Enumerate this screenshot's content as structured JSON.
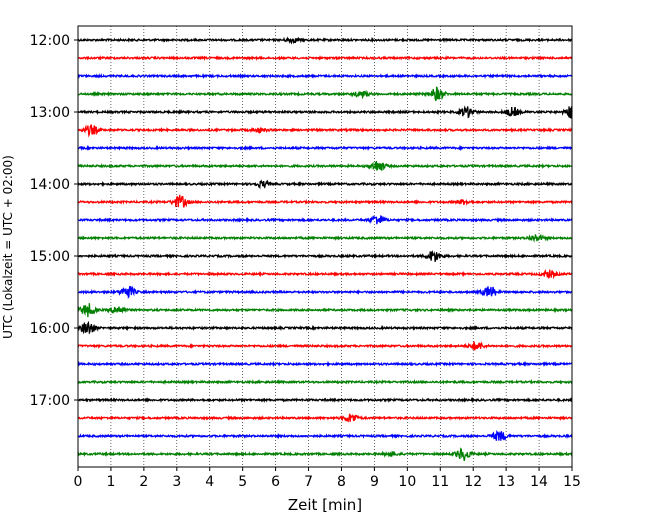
{
  "chart_data": {
    "type": "line",
    "title": "",
    "xlabel": "Zeit  [min]",
    "ylabel": "UTC (Lokalzeit = UTC + 02:00)",
    "xlim": [
      0,
      15
    ],
    "x_ticks": [
      "0",
      "1",
      "2",
      "3",
      "4",
      "5",
      "6",
      "7",
      "8",
      "9",
      "10",
      "11",
      "12",
      "13",
      "14",
      "15"
    ],
    "y_tick_labels": [
      "12:00",
      "13:00",
      "14:00",
      "15:00",
      "16:00",
      "17:00"
    ],
    "trace_interval_minutes": 15,
    "trace_start": "12:00",
    "trace_count": 24,
    "grid": "vertical dotted at each minute",
    "series_colors": [
      "#000000",
      "#ff0000",
      "#0000ff",
      "#008000"
    ],
    "events": [
      {
        "trace": 0,
        "minute": 6.5,
        "amplitude": 0.3
      },
      {
        "trace": 3,
        "minute": 10.9,
        "amplitude": 0.9
      },
      {
        "trace": 3,
        "minute": 8.6,
        "amplitude": 0.4
      },
      {
        "trace": 4,
        "minute": 11.8,
        "amplitude": 0.7
      },
      {
        "trace": 4,
        "minute": 13.2,
        "amplitude": 0.6
      },
      {
        "trace": 4,
        "minute": 15.0,
        "amplitude": 0.9
      },
      {
        "trace": 5,
        "minute": 0.4,
        "amplitude": 0.7
      },
      {
        "trace": 5,
        "minute": 5.5,
        "amplitude": 0.3
      },
      {
        "trace": 7,
        "minute": 9.1,
        "amplitude": 0.8
      },
      {
        "trace": 8,
        "minute": 5.6,
        "amplitude": 0.4
      },
      {
        "trace": 9,
        "minute": 3.1,
        "amplitude": 0.9
      },
      {
        "trace": 9,
        "minute": 11.7,
        "amplitude": 0.3
      },
      {
        "trace": 10,
        "minute": 9.1,
        "amplitude": 0.7
      },
      {
        "trace": 11,
        "minute": 13.9,
        "amplitude": 0.5
      },
      {
        "trace": 12,
        "minute": 10.8,
        "amplitude": 0.8
      },
      {
        "trace": 13,
        "minute": 14.3,
        "amplitude": 0.5
      },
      {
        "trace": 14,
        "minute": 1.5,
        "amplitude": 0.9
      },
      {
        "trace": 14,
        "minute": 12.5,
        "amplitude": 0.8
      },
      {
        "trace": 15,
        "minute": 0.3,
        "amplitude": 0.9
      },
      {
        "trace": 15,
        "minute": 1.2,
        "amplitude": 0.6
      },
      {
        "trace": 16,
        "minute": 0.3,
        "amplitude": 0.9
      },
      {
        "trace": 17,
        "minute": 12.1,
        "amplitude": 0.6
      },
      {
        "trace": 21,
        "minute": 8.3,
        "amplitude": 0.6
      },
      {
        "trace": 22,
        "minute": 12.8,
        "amplitude": 0.7
      },
      {
        "trace": 23,
        "minute": 11.7,
        "amplitude": 0.9
      },
      {
        "trace": 23,
        "minute": 9.5,
        "amplitude": 0.3
      }
    ]
  }
}
